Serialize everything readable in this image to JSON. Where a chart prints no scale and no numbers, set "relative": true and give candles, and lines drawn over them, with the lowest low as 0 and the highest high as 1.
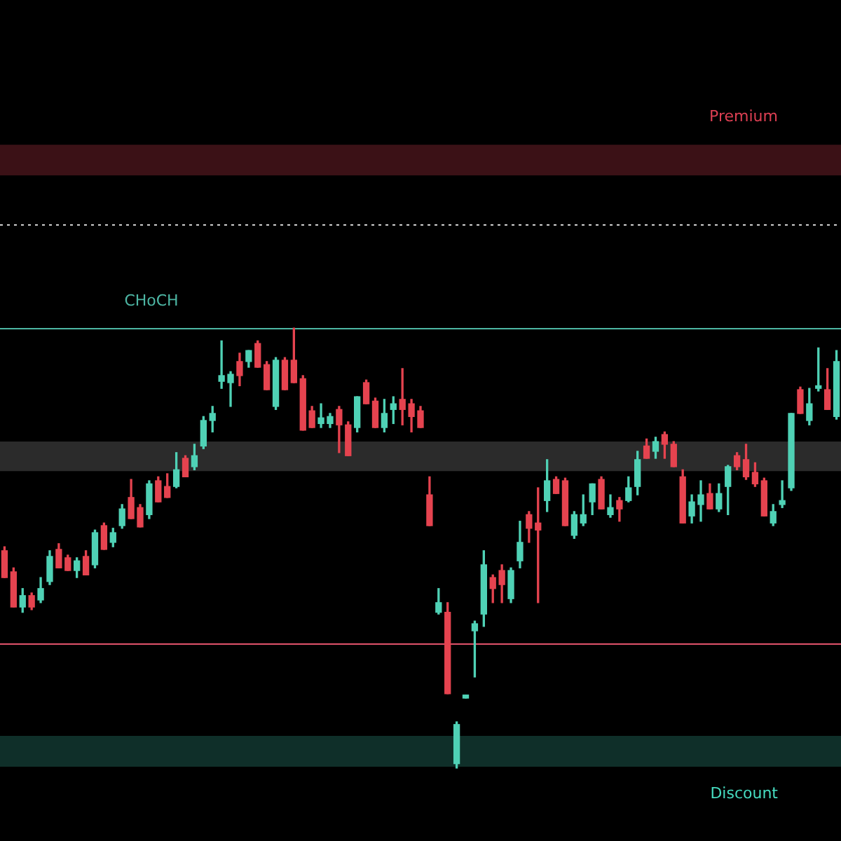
{
  "chart_data": {
    "type": "candlestick",
    "relative": true,
    "categories": [
      null,
      null,
      null,
      null,
      null,
      null,
      null,
      null,
      null,
      null,
      null,
      null,
      null,
      null,
      null,
      null,
      null,
      null,
      null,
      null,
      null,
      null,
      null,
      null,
      null,
      null,
      null,
      null,
      null,
      null,
      null,
      null,
      null,
      null,
      null,
      null,
      null,
      null,
      null,
      null,
      null,
      null,
      null,
      null,
      null,
      null,
      null,
      null,
      null,
      null,
      null,
      null,
      null,
      null,
      null,
      null,
      null,
      null,
      null,
      null,
      null,
      null,
      null,
      null,
      null,
      null,
      null,
      null,
      null,
      null,
      null,
      null,
      null,
      null,
      null,
      null,
      null,
      null,
      null,
      null,
      null,
      null,
      null,
      null,
      null,
      null,
      null,
      null,
      null,
      null,
      null,
      null,
      null
    ],
    "ohlc": [
      [
        0.494,
        0.503,
        0.433,
        0.433
      ],
      [
        0.446,
        0.455,
        0.366,
        0.366
      ],
      [
        0.366,
        0.408,
        0.354,
        0.392
      ],
      [
        0.392,
        0.398,
        0.36,
        0.366
      ],
      [
        0.382,
        0.433,
        0.376,
        0.408
      ],
      [
        0.424,
        0.494,
        0.417,
        0.481
      ],
      [
        0.497,
        0.51,
        0.455,
        0.455
      ],
      [
        0.478,
        0.484,
        0.449,
        0.449
      ],
      [
        0.449,
        0.478,
        0.433,
        0.471
      ],
      [
        0.481,
        0.494,
        0.439,
        0.439
      ],
      [
        0.462,
        0.541,
        0.455,
        0.535
      ],
      [
        0.551,
        0.557,
        0.497,
        0.497
      ],
      [
        0.513,
        0.545,
        0.503,
        0.535
      ],
      [
        0.551,
        0.599,
        0.545,
        0.589
      ],
      [
        0.615,
        0.656,
        0.567,
        0.567
      ],
      [
        0.592,
        0.599,
        0.548,
        0.548
      ],
      [
        0.576,
        0.653,
        0.567,
        0.646
      ],
      [
        0.653,
        0.662,
        0.605,
        0.605
      ],
      [
        0.64,
        0.669,
        0.615,
        0.615
      ],
      [
        0.64,
        0.717,
        0.637,
        0.678
      ],
      [
        0.704,
        0.71,
        0.662,
        0.662
      ],
      [
        0.685,
        0.736,
        0.678,
        0.71
      ],
      [
        0.732,
        0.799,
        0.726,
        0.79
      ],
      [
        0.79,
        0.822,
        0.764,
        0.806
      ],
      [
        0.879,
        0.971,
        0.863,
        0.892
      ],
      [
        0.876,
        0.901,
        0.822,
        0.895
      ],
      [
        0.924,
        0.943,
        0.869,
        0.892
      ],
      [
        0.924,
        0.949,
        0.911,
        0.949
      ],
      [
        0.965,
        0.971,
        0.911,
        0.911
      ],
      [
        0.917,
        0.924,
        0.86,
        0.86
      ],
      [
        0.822,
        0.933,
        0.815,
        0.927
      ],
      [
        0.927,
        0.933,
        0.86,
        0.86
      ],
      [
        0.927,
        1.0,
        0.876,
        0.876
      ],
      [
        0.885,
        0.892,
        0.768,
        0.768
      ],
      [
        0.812,
        0.822,
        0.774,
        0.774
      ],
      [
        0.783,
        0.828,
        0.774,
        0.796
      ],
      [
        0.783,
        0.806,
        0.774,
        0.799
      ],
      [
        0.815,
        0.822,
        0.717,
        0.78
      ],
      [
        0.78,
        0.787,
        0.71,
        0.71
      ],
      [
        0.774,
        0.844,
        0.764,
        0.844
      ],
      [
        0.876,
        0.882,
        0.828,
        0.828
      ],
      [
        0.834,
        0.841,
        0.774,
        0.774
      ],
      [
        0.774,
        0.838,
        0.764,
        0.806
      ],
      [
        0.815,
        0.844,
        0.783,
        0.828
      ],
      [
        0.838,
        0.908,
        0.78,
        0.815
      ],
      [
        0.828,
        0.838,
        0.764,
        0.799
      ],
      [
        0.812,
        0.822,
        0.774,
        0.774
      ],
      [
        0.621,
        0.662,
        0.551,
        0.551
      ],
      [
        0.354,
        0.408,
        0.35,
        0.376
      ],
      [
        0.354,
        0.376,
        0.169,
        0.169
      ],
      [
        0.01,
        0.105,
        0.0,
        0.099
      ],
      [
        0.159,
        0.166,
        0.159,
        0.166
      ],
      [
        0.312,
        0.334,
        0.207,
        0.328
      ],
      [
        0.35,
        0.494,
        0.322,
        0.462
      ],
      [
        0.433,
        0.439,
        0.376,
        0.408
      ],
      [
        0.449,
        0.462,
        0.376,
        0.417
      ],
      [
        0.385,
        0.455,
        0.376,
        0.449
      ],
      [
        0.471,
        0.561,
        0.455,
        0.513
      ],
      [
        0.576,
        0.583,
        0.513,
        0.545
      ],
      [
        0.557,
        0.637,
        0.376,
        0.541
      ],
      [
        0.608,
        0.701,
        0.583,
        0.653
      ],
      [
        0.656,
        0.662,
        0.624,
        0.624
      ],
      [
        0.653,
        0.659,
        0.551,
        0.551
      ],
      [
        0.529,
        0.583,
        0.522,
        0.576
      ],
      [
        0.557,
        0.621,
        0.551,
        0.576
      ],
      [
        0.605,
        0.646,
        0.576,
        0.646
      ],
      [
        0.656,
        0.662,
        0.589,
        0.589
      ],
      [
        0.576,
        0.621,
        0.57,
        0.592
      ],
      [
        0.608,
        0.615,
        0.561,
        0.589
      ],
      [
        0.608,
        0.662,
        0.605,
        0.637
      ],
      [
        0.64,
        0.72,
        0.621,
        0.701
      ],
      [
        0.732,
        0.748,
        0.704,
        0.704
      ],
      [
        0.72,
        0.752,
        0.704,
        0.742
      ],
      [
        0.758,
        0.764,
        0.704,
        0.736
      ],
      [
        0.736,
        0.742,
        0.685,
        0.685
      ],
      [
        0.662,
        0.678,
        0.557,
        0.557
      ],
      [
        0.573,
        0.621,
        0.557,
        0.605
      ],
      [
        0.599,
        0.653,
        0.561,
        0.621
      ],
      [
        0.624,
        0.646,
        0.589,
        0.589
      ],
      [
        0.589,
        0.646,
        0.583,
        0.624
      ],
      [
        0.64,
        0.688,
        0.576,
        0.685
      ],
      [
        0.71,
        0.717,
        0.678,
        0.685
      ],
      [
        0.701,
        0.736,
        0.656,
        0.662
      ],
      [
        0.672,
        0.694,
        0.64,
        0.646
      ],
      [
        0.653,
        0.659,
        0.573,
        0.573
      ],
      [
        0.557,
        0.599,
        0.551,
        0.583
      ],
      [
        0.599,
        0.653,
        0.592,
        0.608
      ],
      [
        0.637,
        0.806,
        0.631,
        0.806
      ],
      [
        0.86,
        0.866,
        0.806,
        0.806
      ],
      [
        0.79,
        0.863,
        0.78,
        0.828
      ],
      [
        0.863,
        0.955,
        0.857,
        0.869
      ],
      [
        0.86,
        0.908,
        0.815,
        0.815
      ],
      [
        0.799,
        0.949,
        0.793,
        0.924
      ]
    ],
    "ref_lines": [
      {
        "axis": "y",
        "value": 1.236,
        "color": "#cfcfcf",
        "line_style": "dotted"
      },
      {
        "axis": "y",
        "value": 1.0,
        "label": "CHoCH",
        "color": "#4db6a4"
      },
      {
        "axis": "y",
        "value": 0.283,
        "color": "#e0526a"
      }
    ],
    "bands": [
      {
        "axis": "y",
        "from": 1.347,
        "to": 1.417,
        "label": "Premium",
        "color": "#3b1116"
      },
      {
        "axis": "y",
        "from": 0.675,
        "to": 0.742,
        "color": "#2b2b2b"
      },
      {
        "axis": "y",
        "from": 0.003,
        "to": 0.073,
        "label": "Discount",
        "color": "#0f2f29"
      }
    ],
    "legend": false
  }
}
